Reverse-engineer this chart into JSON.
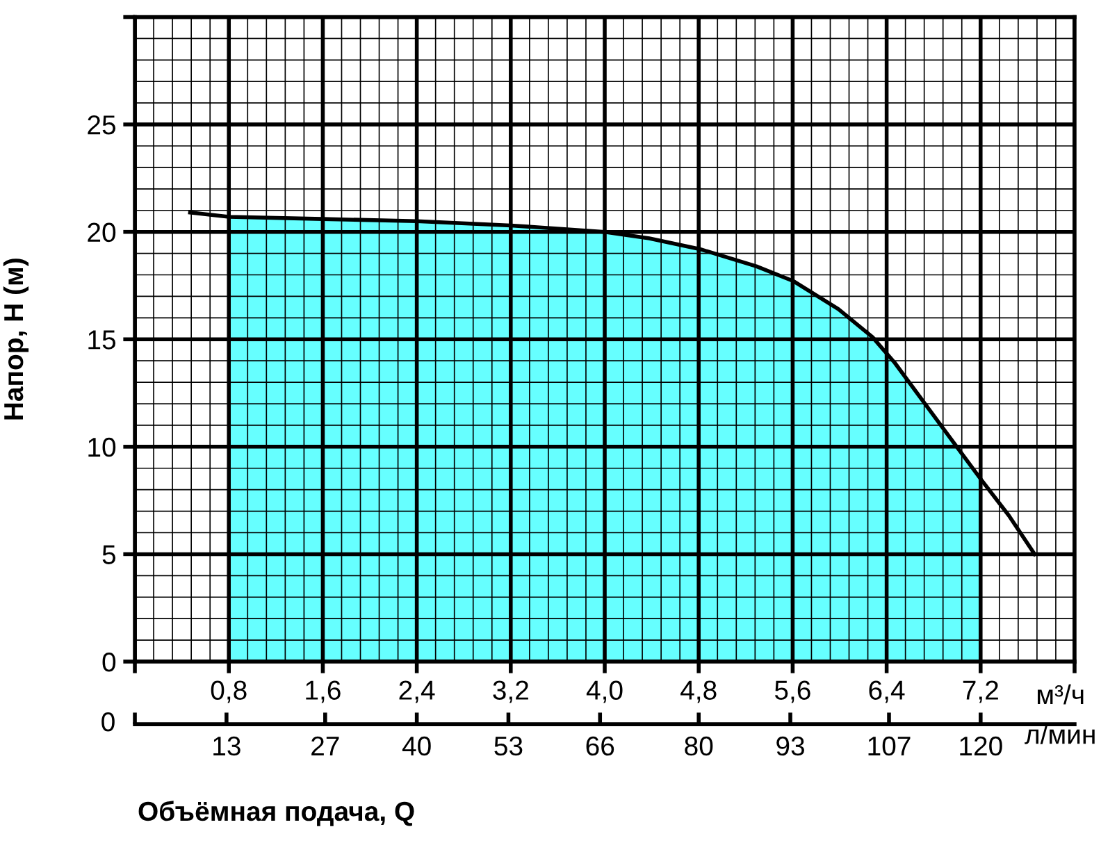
{
  "chart_data": {
    "type": "line",
    "ylabel": "Напор, H (м)",
    "xlabel": "м³/ч",
    "x2label": "л/мин",
    "annotations": [
      "Объёмная подача, Q",
      "0"
    ],
    "xlim": [
      0,
      8.0
    ],
    "ylim": [
      0,
      30
    ],
    "xticks": [
      {
        "value": 0,
        "label": null
      },
      {
        "value": 0.8,
        "label": "0,8"
      },
      {
        "value": 1.6,
        "label": "1,6"
      },
      {
        "value": 2.4,
        "label": "2,4"
      },
      {
        "value": 3.2,
        "label": "3,2"
      },
      {
        "value": 4.0,
        "label": "4,0"
      },
      {
        "value": 4.8,
        "label": "4,8"
      },
      {
        "value": 5.6,
        "label": "5,6"
      },
      {
        "value": 6.4,
        "label": "6,4"
      },
      {
        "value": 7.2,
        "label": "7,2"
      },
      {
        "value": 8.0,
        "label": null
      }
    ],
    "yticks": [
      0,
      5,
      10,
      15,
      20,
      25,
      {
        "value": 30,
        "label": null
      }
    ],
    "x2lim": [
      0,
      133.33
    ],
    "x2ticks": [
      {
        "value": 0,
        "label": null
      },
      13,
      27,
      40,
      53,
      66,
      80,
      93,
      107,
      120
    ],
    "grid": true,
    "series": [
      {
        "type": "area",
        "color": "#66ffff",
        "x": [
          0.8,
          1.6,
          2.4,
          3.2,
          4.0,
          4.38,
          4.81,
          5.29,
          5.61,
          5.99,
          6.28,
          6.47,
          6.74,
          7.01,
          7.2
        ],
        "values": [
          20.7,
          20.6,
          20.5,
          20.3,
          20.0,
          19.7,
          19.2,
          18.4,
          17.7,
          16.4,
          15.1,
          13.9,
          11.9,
          9.9,
          8.5
        ]
      },
      {
        "color": "#000000",
        "x": [
          0.47,
          0.8,
          1.6,
          2.4,
          3.2,
          4.0,
          4.38,
          4.81,
          5.29,
          5.61,
          5.99,
          6.28,
          6.47,
          6.74,
          7.01,
          7.2,
          7.44,
          7.66
        ],
        "values": [
          20.9,
          20.7,
          20.6,
          20.5,
          20.3,
          20.0,
          19.7,
          19.2,
          18.4,
          17.7,
          16.4,
          15.1,
          13.9,
          11.9,
          9.9,
          8.5,
          6.8,
          5.0
        ]
      }
    ]
  }
}
